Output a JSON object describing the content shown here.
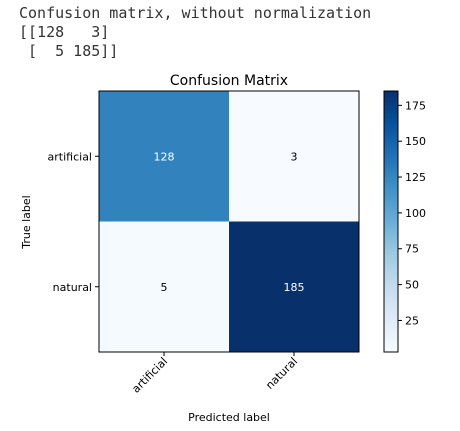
{
  "console": {
    "lines": [
      "Confusion matrix, without normalization",
      "[[128   3]",
      " [  5 185]]"
    ]
  },
  "chart_data": {
    "type": "heatmap",
    "title": "Confusion Matrix",
    "xlabel": "Predicted label",
    "ylabel": "True label",
    "x_categories": [
      "artificial",
      "natural"
    ],
    "y_categories": [
      "artificial",
      "natural"
    ],
    "matrix": [
      [
        128,
        3
      ],
      [
        5,
        185
      ]
    ],
    "colormap": "Blues",
    "color_range": [
      3,
      185
    ],
    "colorbar_ticks": [
      25,
      50,
      75,
      100,
      125,
      150,
      175
    ],
    "colors": {
      "low": "#f7fbff",
      "mid": "#2c7dbb",
      "high": "#08306b"
    }
  }
}
